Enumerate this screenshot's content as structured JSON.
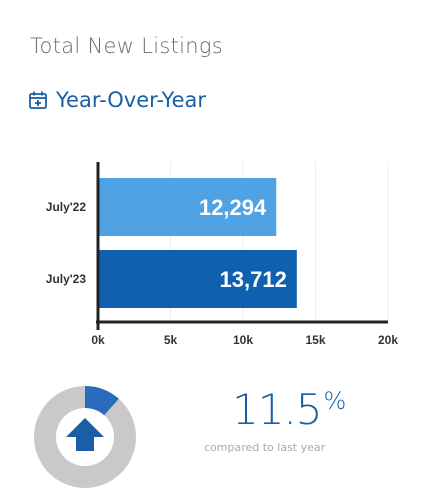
{
  "header": {
    "title": "Total New Listings",
    "subtitle": "Year-Over-Year"
  },
  "colors": {
    "accent": "#1a5fa6",
    "bar_2022": "#4fa3e4",
    "bar_2023": "#1060b0",
    "donut_track": "#c9c9c9",
    "donut_fill": "#2a6bbf"
  },
  "icons": {
    "calendar": "calendar-plus-icon",
    "arrow": "up-arrow-icon"
  },
  "chart_data": {
    "type": "bar",
    "orientation": "horizontal",
    "categories": [
      "July'22",
      "July'23"
    ],
    "values": [
      12294,
      13712
    ],
    "value_labels": [
      "12,294",
      "13,712"
    ],
    "xlim": [
      0,
      20000
    ],
    "xticks": [
      0,
      5000,
      10000,
      15000,
      20000
    ],
    "xtick_labels": [
      "0k",
      "5k",
      "10k",
      "15k",
      "20k"
    ],
    "grid": "vertical"
  },
  "change": {
    "percent_value": "11.5",
    "percent_sign": "%",
    "caption": "compared to last year",
    "direction": "up",
    "fraction": 0.115
  }
}
